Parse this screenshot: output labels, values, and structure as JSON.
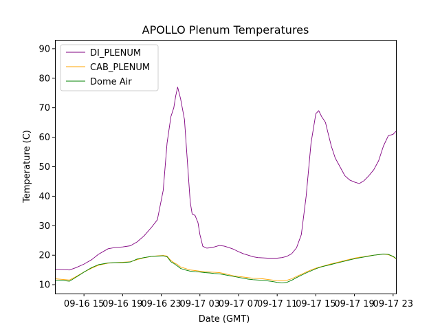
{
  "chart_data": {
    "type": "line",
    "title": "APOLLO Plenum Temperatures",
    "xlabel": "Date (GMT)",
    "ylabel": "Temperature (C)",
    "x_unit": "hours since 09-16 12:00 GMT",
    "xlim": [
      0,
      35.3
    ],
    "ylim": [
      7,
      93
    ],
    "grid": false,
    "legend_position": "top-left",
    "x_ticks": [
      {
        "x": 3,
        "label": "09-16 15"
      },
      {
        "x": 7,
        "label": "09-16 19"
      },
      {
        "x": 11,
        "label": "09-16 23"
      },
      {
        "x": 15,
        "label": "09-17 03"
      },
      {
        "x": 19,
        "label": "09-17 07"
      },
      {
        "x": 23,
        "label": "09-17 11"
      },
      {
        "x": 27,
        "label": "09-17 15"
      },
      {
        "x": 31,
        "label": "09-17 19"
      },
      {
        "x": 35,
        "label": "09-17 23"
      }
    ],
    "y_ticks": [
      {
        "y": 10,
        "label": "10"
      },
      {
        "y": 20,
        "label": "20"
      },
      {
        "y": 30,
        "label": "30"
      },
      {
        "y": 40,
        "label": "40"
      },
      {
        "y": 50,
        "label": "50"
      },
      {
        "y": 60,
        "label": "60"
      },
      {
        "y": 70,
        "label": "70"
      },
      {
        "y": 80,
        "label": "80"
      },
      {
        "y": 90,
        "label": "90"
      }
    ],
    "series": [
      {
        "name": "DI_PLENUM",
        "color": "#800080",
        "x": [
          0,
          0.8,
          1.5,
          2.2,
          3,
          3.8,
          4.5,
          5.5,
          6.2,
          7,
          7.8,
          8.5,
          9.2,
          10,
          10.6,
          11.2,
          11.6,
          12,
          12.3,
          12.5,
          12.7,
          13,
          13.4,
          13.7,
          14,
          14.2,
          14.5,
          14.8,
          15,
          15.3,
          15.7,
          16,
          16.5,
          17,
          17.5,
          18,
          18.5,
          19,
          19.5,
          20,
          20.5,
          21,
          21.5,
          22,
          22.5,
          23,
          23.5,
          24,
          24.5,
          25,
          25.5,
          26,
          26.5,
          27,
          27.3,
          27.6,
          27.8,
          28,
          28.3,
          28.6,
          29,
          29.5,
          30,
          30.5,
          31,
          31.5,
          32,
          32.5,
          33,
          33.5,
          34,
          34.5,
          35,
          35.3
        ],
        "values": [
          15.3,
          15.1,
          15,
          15.8,
          17,
          18.5,
          20.3,
          22.2,
          22.6,
          22.8,
          23.2,
          24.5,
          26.5,
          29.5,
          32,
          42,
          58,
          67,
          70,
          74,
          77,
          73,
          66,
          52,
          38,
          34,
          33.5,
          31,
          27,
          23,
          22.4,
          22.5,
          22.8,
          23.3,
          23.1,
          22.6,
          22,
          21.2,
          20.5,
          20,
          19.5,
          19.2,
          19.1,
          19,
          19,
          19,
          19.2,
          19.6,
          20.5,
          22.5,
          27,
          40,
          58,
          68,
          69,
          67,
          66,
          65,
          61,
          57,
          53,
          50,
          47,
          45.5,
          44.8,
          44.3,
          45.3,
          47,
          49,
          52,
          57,
          60.5,
          61,
          62
        ]
      },
      {
        "name": "CAB_PLENUM",
        "color": "#ffa500",
        "x": [
          0,
          0.8,
          1.5,
          2.2,
          3,
          3.8,
          4.5,
          5.5,
          6.2,
          7,
          7.8,
          8.5,
          9.2,
          10,
          10.6,
          11.2,
          11.6,
          12,
          12.3,
          12.7,
          13,
          13.5,
          14,
          14.5,
          15,
          15.5,
          16,
          16.5,
          17,
          17.5,
          18,
          18.5,
          19,
          19.5,
          20,
          20.5,
          21,
          21.5,
          22,
          22.5,
          23,
          23.5,
          24,
          24.5,
          25,
          25.5,
          26,
          26.5,
          27,
          27.5,
          28,
          28.5,
          29,
          29.5,
          30,
          30.5,
          31,
          31.5,
          32,
          32.5,
          33,
          33.5,
          34,
          34.5,
          35,
          35.3
        ],
        "values": [
          12,
          11.8,
          11.6,
          12.8,
          14.3,
          15.6,
          16.6,
          17.3,
          17.5,
          17.6,
          17.8,
          18.5,
          19.1,
          19.6,
          19.8,
          19.9,
          19.7,
          18.2,
          17.5,
          16.8,
          16,
          15.5,
          15,
          14.8,
          14.6,
          14.4,
          14.3,
          14.2,
          14.1,
          13.8,
          13.4,
          13,
          12.8,
          12.6,
          12.4,
          12.2,
          12.1,
          12,
          11.8,
          11.6,
          11.4,
          11.3,
          11.5,
          12,
          12.8,
          13.5,
          14.3,
          15,
          15.6,
          16.1,
          16.5,
          17,
          17.4,
          17.8,
          18.2,
          18.6,
          19,
          19.3,
          19.5,
          19.8,
          20,
          20.2,
          20.4,
          20.2,
          19.5,
          18.8
        ]
      },
      {
        "name": "Dome Air",
        "color": "#008000",
        "x": [
          0,
          0.8,
          1.5,
          2.2,
          3,
          3.8,
          4.5,
          5.5,
          6.2,
          7,
          7.8,
          8.5,
          9.2,
          10,
          10.6,
          11.2,
          11.6,
          12,
          12.3,
          12.7,
          13,
          13.5,
          14,
          14.5,
          15,
          15.5,
          16,
          16.5,
          17,
          17.5,
          18,
          18.5,
          19,
          19.5,
          20,
          20.5,
          21,
          21.5,
          22,
          22.5,
          23,
          23.5,
          24,
          24.5,
          25,
          25.5,
          26,
          26.5,
          27,
          27.5,
          28,
          28.5,
          29,
          29.5,
          30,
          30.5,
          31,
          31.5,
          32,
          32.5,
          33,
          33.5,
          34,
          34.5,
          35,
          35.3
        ],
        "values": [
          11.6,
          11.4,
          11.2,
          12.6,
          14.3,
          15.8,
          16.8,
          17.4,
          17.5,
          17.5,
          17.7,
          18.7,
          19.2,
          19.6,
          19.7,
          19.8,
          19.5,
          17.8,
          17.2,
          16.3,
          15.5,
          15,
          14.6,
          14.4,
          14.3,
          14.1,
          14,
          13.8,
          13.7,
          13.4,
          13.1,
          12.8,
          12.5,
          12.2,
          11.9,
          11.7,
          11.6,
          11.5,
          11.3,
          11.1,
          10.8,
          10.6,
          10.8,
          11.5,
          12.4,
          13.2,
          14,
          14.7,
          15.4,
          16,
          16.4,
          16.8,
          17.2,
          17.6,
          18,
          18.4,
          18.8,
          19.1,
          19.4,
          19.7,
          20,
          20.2,
          20.4,
          20.3,
          19.6,
          18.9
        ]
      }
    ]
  }
}
